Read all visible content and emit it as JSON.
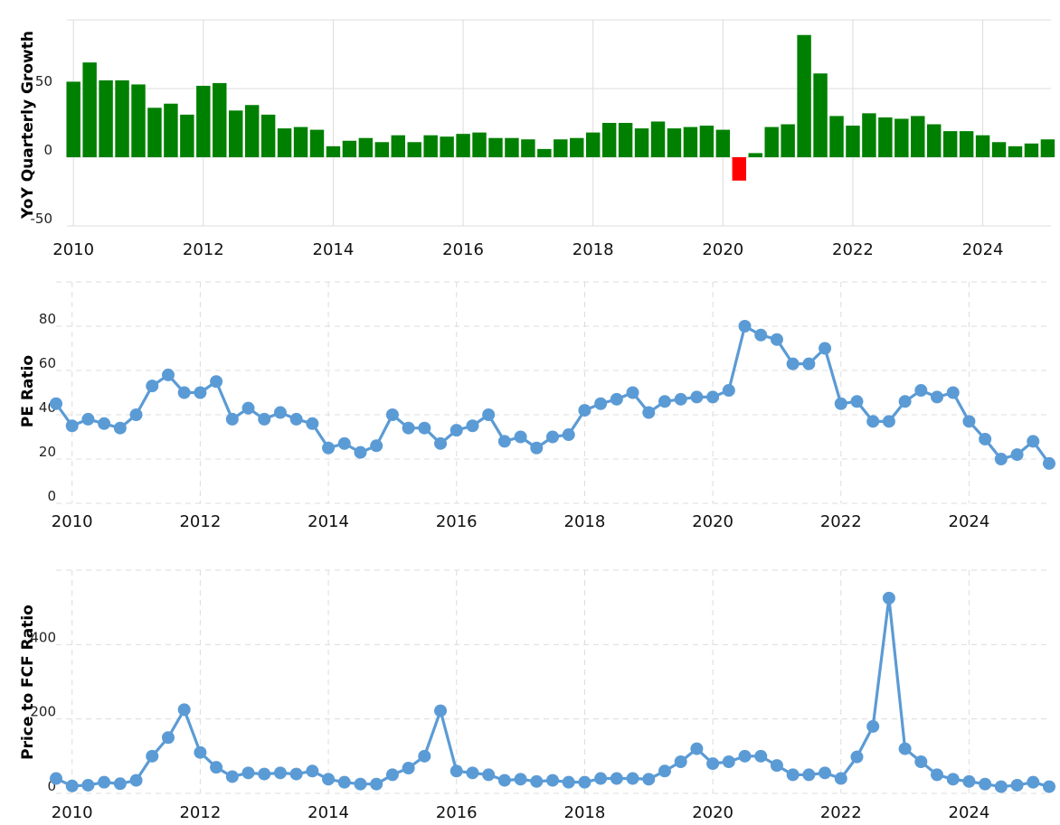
{
  "chart_data": [
    {
      "type": "bar",
      "ylabel": "YoY Quarterly Growth",
      "xlabel": "",
      "y_ticks": [
        "50",
        "0",
        "-50"
      ],
      "x_ticks": [
        "2010",
        "2012",
        "2014",
        "2016",
        "2018",
        "2020",
        "2022",
        "2024"
      ],
      "ylim": [
        -50,
        100
      ],
      "xlim": [
        2009.9,
        2025.05
      ],
      "grid": true,
      "positive_color": "#008000",
      "negative_color": "#ff0000",
      "x": [
        2010.0,
        2010.25,
        2010.5,
        2010.75,
        2011.0,
        2011.25,
        2011.5,
        2011.75,
        2012.0,
        2012.25,
        2012.5,
        2012.75,
        2013.0,
        2013.25,
        2013.5,
        2013.75,
        2014.0,
        2014.25,
        2014.5,
        2014.75,
        2015.0,
        2015.25,
        2015.5,
        2015.75,
        2016.0,
        2016.25,
        2016.5,
        2016.75,
        2017.0,
        2017.25,
        2017.5,
        2017.75,
        2018.0,
        2018.25,
        2018.5,
        2018.75,
        2019.0,
        2019.25,
        2019.5,
        2019.75,
        2020.0,
        2020.25,
        2020.5,
        2020.75,
        2021.0,
        2021.25,
        2021.5,
        2021.75,
        2022.0,
        2022.25,
        2022.5,
        2022.75,
        2023.0,
        2023.25,
        2023.5,
        2023.75,
        2024.0,
        2024.25,
        2024.5,
        2024.75,
        2025.0
      ],
      "values": [
        55,
        69,
        56,
        56,
        53,
        36,
        39,
        31,
        52,
        54,
        34,
        38,
        31,
        21,
        22,
        20,
        8,
        12,
        14,
        11,
        16,
        11,
        16,
        15,
        17,
        18,
        14,
        14,
        13,
        6,
        13,
        14,
        18,
        25,
        25,
        21,
        26,
        21,
        22,
        23,
        20,
        -17,
        3,
        22,
        24,
        89,
        61,
        30,
        23,
        32,
        29,
        28,
        30,
        24,
        19,
        19,
        16,
        11,
        8,
        10,
        13
      ]
    },
    {
      "type": "line",
      "ylabel": "PE Ratio",
      "xlabel": "",
      "y_ticks": [
        "80",
        "60",
        "40",
        "20",
        "0"
      ],
      "x_ticks": [
        "2010",
        "2012",
        "2014",
        "2016",
        "2018",
        "2020",
        "2022",
        "2024"
      ],
      "ylim": [
        0,
        100
      ],
      "xlim": [
        2009.75,
        2025.25
      ],
      "grid": true,
      "line_color": "#5b9bd5",
      "x": [
        2009.75,
        2010.0,
        2010.25,
        2010.5,
        2010.75,
        2011.0,
        2011.25,
        2011.5,
        2011.75,
        2012.0,
        2012.25,
        2012.5,
        2012.75,
        2013.0,
        2013.25,
        2013.5,
        2013.75,
        2014.0,
        2014.25,
        2014.5,
        2014.75,
        2015.0,
        2015.25,
        2015.5,
        2015.75,
        2016.0,
        2016.25,
        2016.5,
        2016.75,
        2017.0,
        2017.25,
        2017.5,
        2017.75,
        2018.0,
        2018.25,
        2018.5,
        2018.75,
        2019.0,
        2019.25,
        2019.5,
        2019.75,
        2020.0,
        2020.25,
        2020.5,
        2020.75,
        2021.0,
        2021.25,
        2021.5,
        2021.75,
        2022.0,
        2022.25,
        2022.5,
        2022.75,
        2023.0,
        2023.25,
        2023.5,
        2023.75,
        2024.0,
        2024.25,
        2024.5,
        2024.75,
        2025.0,
        2025.25
      ],
      "values": [
        45,
        35,
        38,
        36,
        34,
        40,
        53,
        58,
        50,
        50,
        55,
        38,
        43,
        38,
        41,
        38,
        36,
        25,
        27,
        23,
        26,
        40,
        34,
        34,
        27,
        33,
        35,
        40,
        28,
        30,
        25,
        30,
        31,
        42,
        45,
        47,
        50,
        41,
        46,
        47,
        48,
        48,
        51,
        80,
        76,
        74,
        63,
        63,
        70,
        45,
        46,
        37,
        37,
        46,
        51,
        48,
        50,
        37,
        29,
        20,
        22,
        28,
        18
      ]
    },
    {
      "type": "line",
      "ylabel": "Price to FCF Ratio",
      "xlabel": "",
      "y_ticks": [
        "400",
        "200",
        "0"
      ],
      "x_ticks": [
        "2010",
        "2012",
        "2014",
        "2016",
        "2018",
        "2020",
        "2022",
        "2024"
      ],
      "ylim": [
        0,
        600
      ],
      "xlim": [
        2009.75,
        2025.25
      ],
      "grid": true,
      "line_color": "#5b9bd5",
      "x": [
        2009.75,
        2010.0,
        2010.25,
        2010.5,
        2010.75,
        2011.0,
        2011.25,
        2011.5,
        2011.75,
        2012.0,
        2012.25,
        2012.5,
        2012.75,
        2013.0,
        2013.25,
        2013.5,
        2013.75,
        2014.0,
        2014.25,
        2014.5,
        2014.75,
        2015.0,
        2015.25,
        2015.5,
        2015.75,
        2016.0,
        2016.25,
        2016.5,
        2016.75,
        2017.0,
        2017.25,
        2017.5,
        2017.75,
        2018.0,
        2018.25,
        2018.5,
        2018.75,
        2019.0,
        2019.25,
        2019.5,
        2019.75,
        2020.0,
        2020.25,
        2020.5,
        2020.75,
        2021.0,
        2021.25,
        2021.5,
        2021.75,
        2022.0,
        2022.25,
        2022.5,
        2022.75,
        2023.0,
        2023.25,
        2023.5,
        2023.75,
        2024.0,
        2024.25,
        2024.5,
        2024.75,
        2025.0,
        2025.25
      ],
      "values": [
        40,
        20,
        22,
        30,
        26,
        35,
        100,
        150,
        225,
        110,
        70,
        45,
        55,
        52,
        55,
        52,
        60,
        38,
        30,
        25,
        25,
        50,
        68,
        100,
        222,
        60,
        55,
        50,
        35,
        38,
        32,
        35,
        30,
        30,
        40,
        40,
        40,
        38,
        60,
        85,
        120,
        80,
        85,
        100,
        100,
        75,
        50,
        50,
        55,
        40,
        98,
        180,
        525,
        120,
        85,
        50,
        38,
        32,
        25,
        18,
        22,
        30,
        18
      ]
    }
  ]
}
